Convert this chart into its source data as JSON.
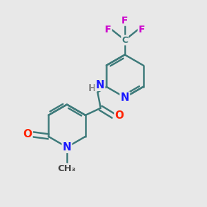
{
  "background_color": "#e8e8e8",
  "bond_color": "#3d7a7a",
  "bond_width": 1.8,
  "atom_colors": {
    "N": "#1a1aff",
    "O": "#ff2200",
    "F": "#cc00cc",
    "C": "#3d7a7a"
  },
  "font_size": 11
}
